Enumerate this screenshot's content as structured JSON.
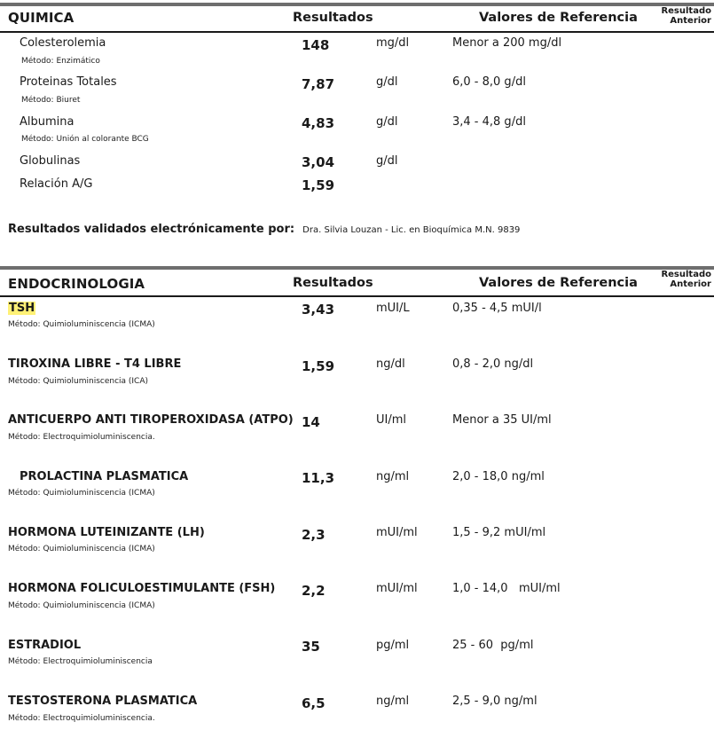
{
  "quimica": {
    "title": "QUIMICA",
    "col_results": "Resultados",
    "col_reference": "Valores de Referencia",
    "col_previous_line1": "Resultado",
    "col_previous_line2": "Anterior",
    "rows": [
      {
        "name": "Colesterolemia",
        "method": "Método: Enzimático",
        "value": "148",
        "unit": "mg/dl",
        "ref": "Menor a 200 mg/dl"
      },
      {
        "name": "Proteinas Totales",
        "method": "Método: Biuret",
        "value": "7,87",
        "unit": "g/dl",
        "ref": "6,0 - 8,0 g/dl"
      },
      {
        "name": "Albumina",
        "method": "Método: Unión al colorante BCG",
        "value": "4,83",
        "unit": "g/dl",
        "ref": "3,4 - 4,8 g/dl"
      },
      {
        "name": "Globulinas",
        "value": "3,04",
        "unit": "g/dl"
      },
      {
        "name": "Relación A/G",
        "value": "1,59"
      }
    ]
  },
  "validation": {
    "label": "Resultados validados electrónicamente por:",
    "text": "Dra. Silvia Louzan - Lic. en Bioquímica M.N. 9839"
  },
  "endocrinologia": {
    "title": "ENDOCRINOLOGIA",
    "col_results": "Resultados",
    "col_reference": "Valores de Referencia",
    "col_previous_line1": "Resultado",
    "col_previous_line2": "Anterior",
    "highlight_color": "#fff176",
    "rows": [
      {
        "name": "TSH",
        "method": "Método: Quimioluminiscencia (ICMA)",
        "value": "3,43",
        "unit": "mUI/L",
        "ref": "0,35 - 4,5 mUI/l"
      },
      {
        "name": "TIROXINA LIBRE - T4 LIBRE",
        "method": "Método: Quimioluminiscencia (ICA)",
        "value": "1,59",
        "unit": "ng/dl",
        "ref": "0,8 - 2,0 ng/dl"
      },
      {
        "name": "ANTICUERPO ANTI TIROPEROXIDASA (ATPO)",
        "method": "Método: Electroquimioluminiscencia.",
        "value": "14",
        "unit": "UI/ml",
        "ref": "Menor a 35 UI/ml"
      },
      {
        "name": "PROLACTINA PLASMATICA",
        "method": "Método: Quimioluminiscencia (ICMA)",
        "value": "11,3",
        "unit": "ng/ml",
        "ref": "2,0 - 18,0 ng/ml"
      },
      {
        "name": "HORMONA LUTEINIZANTE (LH)",
        "method": "Método: Quimioluminiscencia (ICMA)",
        "value": "2,3",
        "unit": "mUI/ml",
        "ref": "1,5 - 9,2 mUI/ml"
      },
      {
        "name": "HORMONA FOLICULOESTIMULANTE (FSH)",
        "method": "Método: Quimioluminiscencia (ICMA)",
        "value": "2,2",
        "unit": "mUI/ml",
        "ref": "1,0 - 14,0   mUI/ml"
      },
      {
        "name": "ESTRADIOL",
        "method": "Método: Electroquimioluminiscencia",
        "value": "35",
        "unit": "pg/ml",
        "ref": "25 - 60  pg/ml"
      },
      {
        "name": "TESTOSTERONA PLASMATICA",
        "method": "Método: Electroquimioluminiscencia.",
        "value": "6,5",
        "unit": "ng/ml",
        "ref": "2,5 - 9,0 ng/ml"
      }
    ]
  }
}
